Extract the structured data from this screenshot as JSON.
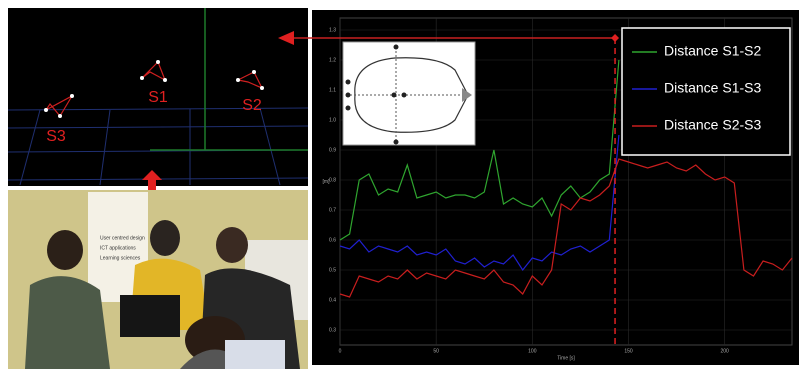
{
  "chart_data": {
    "type": "line",
    "x_label": "Time [s]",
    "y_label": "[m]",
    "x": [
      0,
      5,
      10,
      15,
      20,
      25,
      30,
      35,
      40,
      45,
      50,
      55,
      60,
      65,
      70,
      75,
      80,
      85,
      90,
      95,
      100,
      105,
      110,
      115,
      120,
      125,
      130,
      135,
      140,
      145,
      150,
      155,
      160,
      165,
      170,
      175,
      180,
      185,
      190,
      195,
      200,
      205,
      210,
      215,
      220,
      225,
      230,
      235
    ],
    "series": [
      {
        "name": "Distance S1-S2",
        "color": "#2fa52f",
        "values": [
          0.6,
          0.62,
          0.8,
          0.82,
          0.75,
          0.77,
          0.76,
          0.85,
          0.74,
          0.75,
          0.76,
          0.74,
          0.75,
          0.75,
          0.74,
          0.76,
          0.9,
          0.72,
          0.74,
          0.72,
          0.71,
          0.74,
          0.68,
          0.75,
          0.78,
          0.74,
          0.76,
          0.8,
          0.82,
          1.2,
          null,
          null,
          null,
          null,
          null,
          null,
          null,
          null,
          null,
          null,
          null,
          null,
          null,
          null,
          null,
          null,
          null,
          null
        ]
      },
      {
        "name": "Distance S1-S3",
        "color": "#2020d0",
        "values": [
          0.58,
          0.57,
          0.6,
          0.56,
          0.58,
          0.57,
          0.56,
          0.58,
          0.55,
          0.56,
          0.55,
          0.57,
          0.53,
          0.52,
          0.54,
          0.51,
          0.53,
          0.52,
          0.55,
          0.5,
          0.54,
          0.53,
          0.56,
          0.55,
          0.57,
          0.58,
          0.56,
          0.58,
          0.6,
          0.95,
          null,
          null,
          null,
          null,
          null,
          null,
          null,
          null,
          null,
          null,
          null,
          null,
          null,
          null,
          null,
          null,
          null,
          null
        ]
      },
      {
        "name": "Distance S2-S3",
        "color": "#c81e1e",
        "values": [
          0.42,
          0.41,
          0.48,
          0.47,
          0.46,
          0.48,
          0.47,
          0.5,
          0.47,
          0.49,
          0.48,
          0.47,
          0.5,
          0.49,
          0.48,
          0.47,
          0.5,
          0.46,
          0.45,
          0.42,
          0.48,
          0.45,
          0.5,
          0.72,
          0.7,
          0.74,
          0.73,
          0.75,
          0.78,
          0.87,
          0.86,
          0.85,
          0.84,
          0.85,
          0.86,
          0.84,
          0.83,
          0.85,
          0.82,
          0.8,
          0.81,
          0.79,
          0.5,
          0.48,
          0.53,
          0.52,
          0.5,
          0.54
        ]
      }
    ],
    "xlim": [
      0,
      235
    ],
    "ylim": [
      0.25,
      1.34
    ],
    "xticks": [
      0,
      50,
      100,
      150,
      200
    ],
    "yticks": [
      0.3,
      0.4,
      0.5,
      0.6,
      0.7,
      0.8,
      0.9,
      {
        "value": 1,
        "label": "1.0"
      },
      1.1,
      1.2,
      1.3
    ],
    "marker_x": 143
  },
  "scene": {
    "labels": [
      "S1",
      "S2",
      "S3"
    ]
  },
  "photo": {
    "poster_lines": [
      "User centred design",
      "ICT applications",
      "Learning sciences"
    ]
  }
}
